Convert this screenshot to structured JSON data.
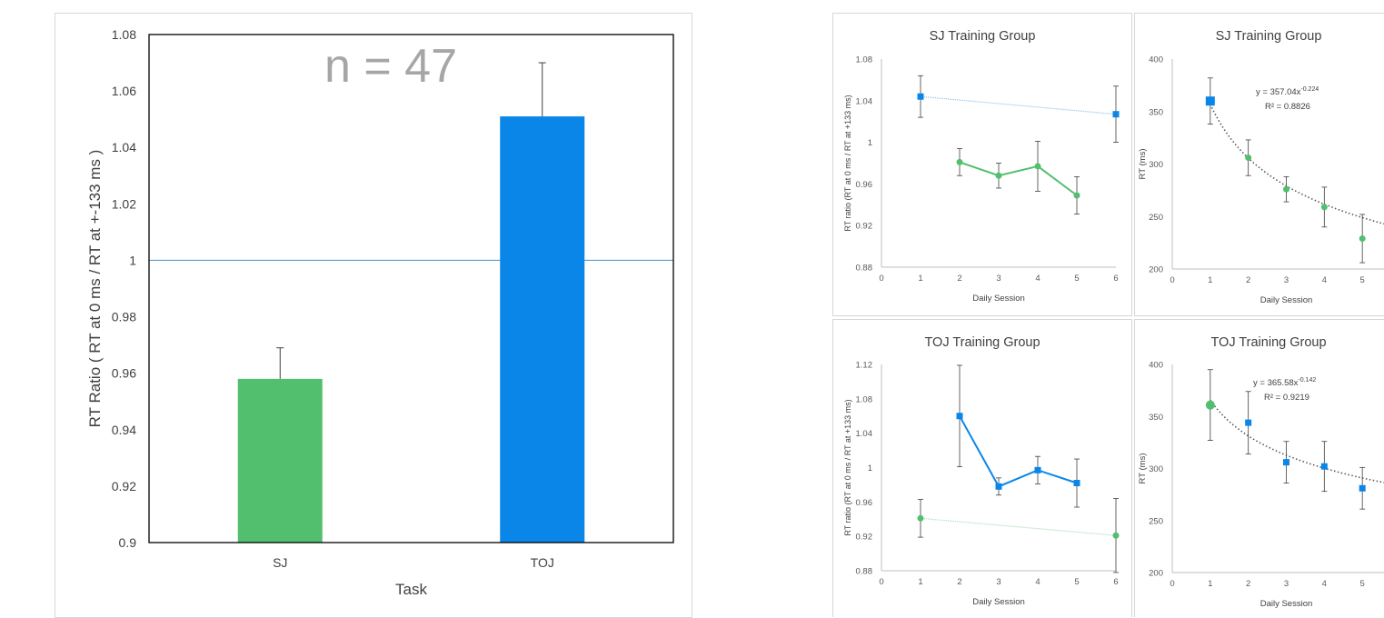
{
  "chart_data": [
    {
      "type": "bar",
      "title": "",
      "annotation": "n = 47",
      "xlabel": "Task",
      "ylabel": "RT Ratio ( RT at 0 ms / RT at +-133 ms )",
      "categories": [
        "SJ",
        "TOJ"
      ],
      "values": [
        0.958,
        1.051
      ],
      "errors": [
        0.011,
        0.019
      ],
      "colors": [
        "#52bf6e",
        "#0a86e8"
      ],
      "reference_line": 1.0,
      "ylim": [
        0.9,
        1.08
      ],
      "yticks": [
        "1.08",
        "1.06",
        "1.04",
        "1.02",
        "1",
        "0.98",
        "0.96",
        "0.94",
        "0.92",
        "0.9"
      ],
      "grid": false
    },
    {
      "type": "line",
      "title": "SJ Training Group",
      "xlabel": "Daily Session",
      "ylabel": "RT ratio (RT at 0 ms / RT at +133 ms)",
      "xlim": [
        0,
        6
      ],
      "xticks": [
        "0",
        "1",
        "2",
        "3",
        "4",
        "5",
        "6"
      ],
      "ylim": [
        0.88,
        1.08
      ],
      "yticks": [
        "1.08",
        "1.04",
        "1",
        "0.96",
        "0.92",
        "0.88"
      ],
      "series": [
        {
          "x": [
            1,
            6
          ],
          "values": [
            1.044,
            1.027
          ],
          "errors": [
            0.02,
            0.027
          ],
          "color": "#0a86e8",
          "marker": "square",
          "connector": "dotted-light"
        },
        {
          "x": [
            2,
            3,
            4,
            5
          ],
          "values": [
            0.981,
            0.968,
            0.977,
            0.949
          ],
          "errors": [
            0.013,
            0.012,
            0.024,
            0.018
          ],
          "color": "#52bf6e",
          "marker": "circle",
          "connector": "solid"
        }
      ]
    },
    {
      "type": "scatter",
      "title": "SJ Training Group",
      "xlabel": "Daily Session",
      "ylabel": "RT (ms)",
      "xlim": [
        0,
        6
      ],
      "xticks": [
        "0",
        "1",
        "2",
        "3",
        "4",
        "5"
      ],
      "ylim": [
        200,
        400
      ],
      "yticks": [
        "400",
        "350",
        "300",
        "250",
        "200"
      ],
      "equation_base": "y = 357.04x",
      "equation_exp": "-0.224",
      "r2": "R² = 0.8826",
      "trend": {
        "a": 357.04,
        "b": -0.224
      },
      "series": [
        {
          "x": [
            1
          ],
          "values": [
            360
          ],
          "errors": [
            22
          ],
          "color": "#0a86e8",
          "marker": "square"
        },
        {
          "x": [
            2,
            3,
            4,
            5
          ],
          "values": [
            306,
            276,
            259,
            229
          ],
          "errors": [
            17,
            12,
            19,
            23
          ],
          "color": "#52bf6e",
          "marker": "circle"
        }
      ]
    },
    {
      "type": "line",
      "title": "TOJ Training Group",
      "xlabel": "Daily Session",
      "ylabel": "RT ratio (RT at 0 ms / RT at +133 ms)",
      "xlim": [
        0,
        6
      ],
      "xticks": [
        "0",
        "1",
        "2",
        "3",
        "4",
        "5",
        "6"
      ],
      "ylim": [
        0.88,
        1.12
      ],
      "yticks": [
        "1.12",
        "1.08",
        "1.04",
        "1",
        "0.96",
        "0.92",
        "0.88"
      ],
      "series": [
        {
          "x": [
            1,
            6
          ],
          "values": [
            0.941,
            0.921
          ],
          "errors": [
            0.022,
            0.043
          ],
          "color": "#52bf6e",
          "marker": "circle",
          "connector": "dotted-light"
        },
        {
          "x": [
            2,
            3,
            4,
            5
          ],
          "values": [
            1.06,
            0.978,
            0.997,
            0.982
          ],
          "errors": [
            0.059,
            0.01,
            0.016,
            0.028
          ],
          "color": "#0a86e8",
          "marker": "square",
          "connector": "solid"
        }
      ]
    },
    {
      "type": "scatter",
      "title": "TOJ Training Group",
      "xlabel": "Daily Session",
      "ylabel": "RT (ms)",
      "xlim": [
        0,
        6
      ],
      "xticks": [
        "0",
        "1",
        "2",
        "3",
        "4",
        "5"
      ],
      "ylim": [
        200,
        400
      ],
      "yticks": [
        "400",
        "350",
        "300",
        "250",
        "200"
      ],
      "equation_base": "y = 365.58x",
      "equation_exp": "-0.142",
      "r2": "R² = 0.9219",
      "trend": {
        "a": 365.58,
        "b": -0.142
      },
      "series": [
        {
          "x": [
            1
          ],
          "values": [
            361
          ],
          "errors": [
            34
          ],
          "color": "#52bf6e",
          "marker": "circle"
        },
        {
          "x": [
            2,
            3,
            4,
            5
          ],
          "values": [
            344,
            306,
            302,
            281
          ],
          "errors": [
            30,
            20,
            24,
            20
          ],
          "color": "#0a86e8",
          "marker": "square"
        }
      ]
    }
  ]
}
